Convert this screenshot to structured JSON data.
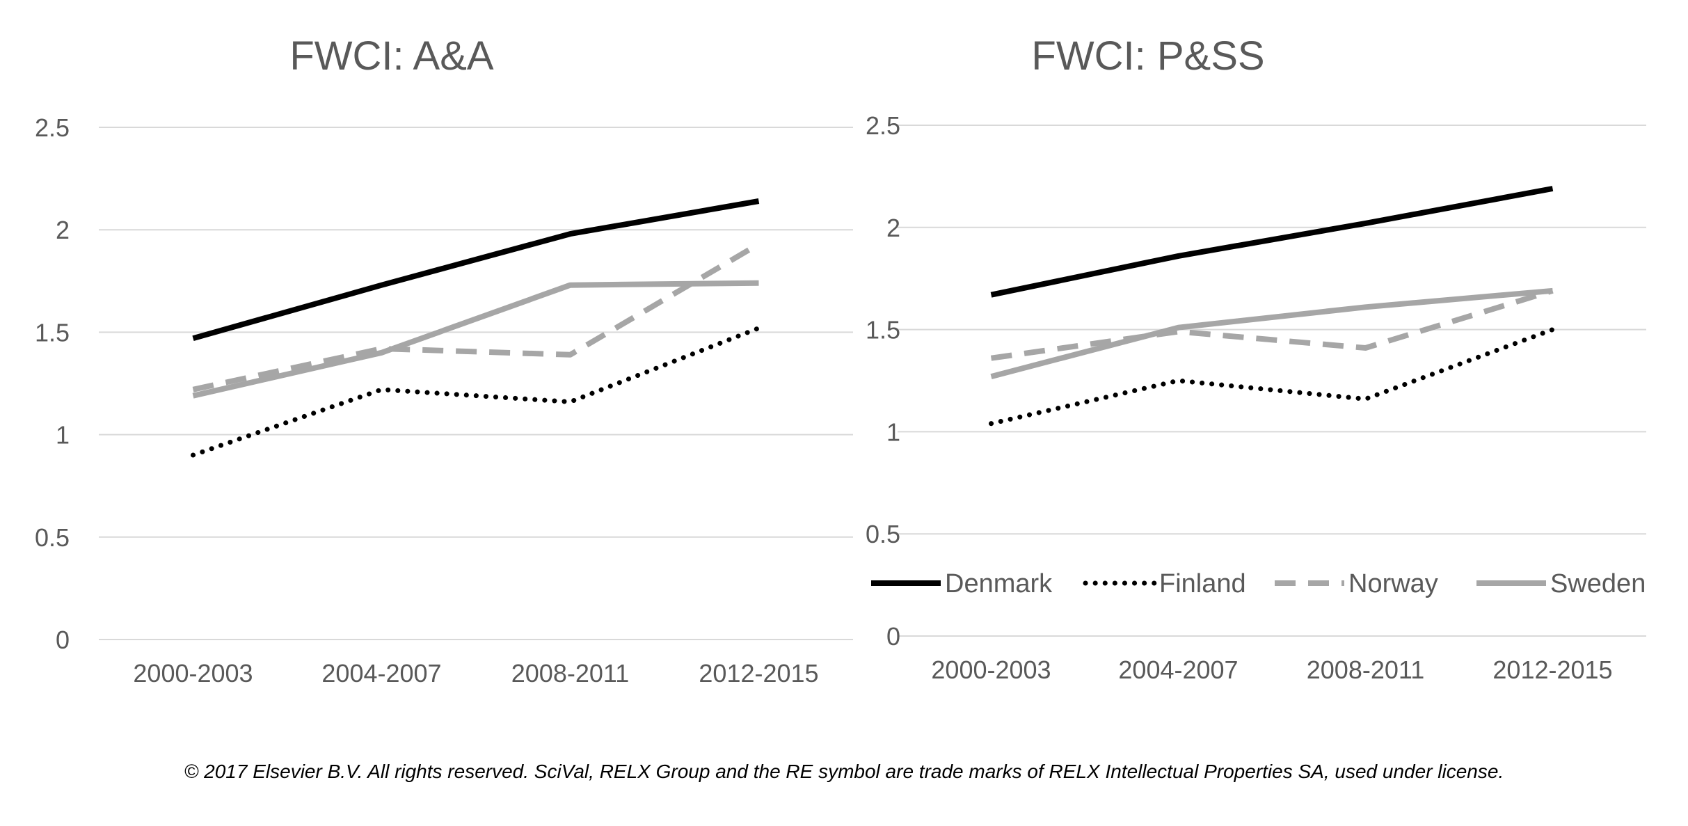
{
  "chart_data": [
    {
      "type": "line",
      "title": "FWCI: A&A",
      "categories": [
        "2000-2003",
        "2004-2007",
        "2008-2011",
        "2012-2015"
      ],
      "ylim": [
        0,
        2.5
      ],
      "yticks": [
        "0",
        "0.5",
        "1",
        "1.5",
        "2",
        "2.5"
      ],
      "grid": true,
      "series": [
        {
          "name": "Denmark",
          "values": [
            1.47,
            1.73,
            1.98,
            2.14
          ]
        },
        {
          "name": "Finland",
          "values": [
            0.9,
            1.22,
            1.16,
            1.52
          ]
        },
        {
          "name": "Norway",
          "values": [
            1.22,
            1.42,
            1.39,
            1.93
          ]
        },
        {
          "name": "Sweden",
          "values": [
            1.19,
            1.4,
            1.73,
            1.74
          ]
        }
      ]
    },
    {
      "type": "line",
      "title": "FWCI: P&SS",
      "categories": [
        "2000-2003",
        "2004-2007",
        "2008-2011",
        "2012-2015"
      ],
      "ylim": [
        0,
        2.5
      ],
      "yticks": [
        "0",
        "0.5",
        "1",
        "1.5",
        "2",
        "2.5"
      ],
      "grid": true,
      "legend": "bottom",
      "series": [
        {
          "name": "Denmark",
          "values": [
            1.67,
            1.86,
            2.02,
            2.19
          ]
        },
        {
          "name": "Finland",
          "values": [
            1.04,
            1.25,
            1.16,
            1.5
          ]
        },
        {
          "name": "Norway",
          "values": [
            1.36,
            1.49,
            1.41,
            1.69
          ]
        },
        {
          "name": "Sweden",
          "values": [
            1.27,
            1.51,
            1.61,
            1.69
          ]
        }
      ]
    }
  ],
  "legend": [
    {
      "name": "Denmark",
      "color": "#000000",
      "style": "solid"
    },
    {
      "name": "Finland",
      "color": "#000000",
      "style": "dotted"
    },
    {
      "name": "Norway",
      "color": "#a6a6a6",
      "style": "dashed"
    },
    {
      "name": "Sweden",
      "color": "#a6a6a6",
      "style": "solid"
    }
  ],
  "footer": "© 2017 Elsevier B.V. All rights reserved. SciVal, RELX Group and the RE symbol are trade marks of RELX Intellectual Properties SA, used under license."
}
